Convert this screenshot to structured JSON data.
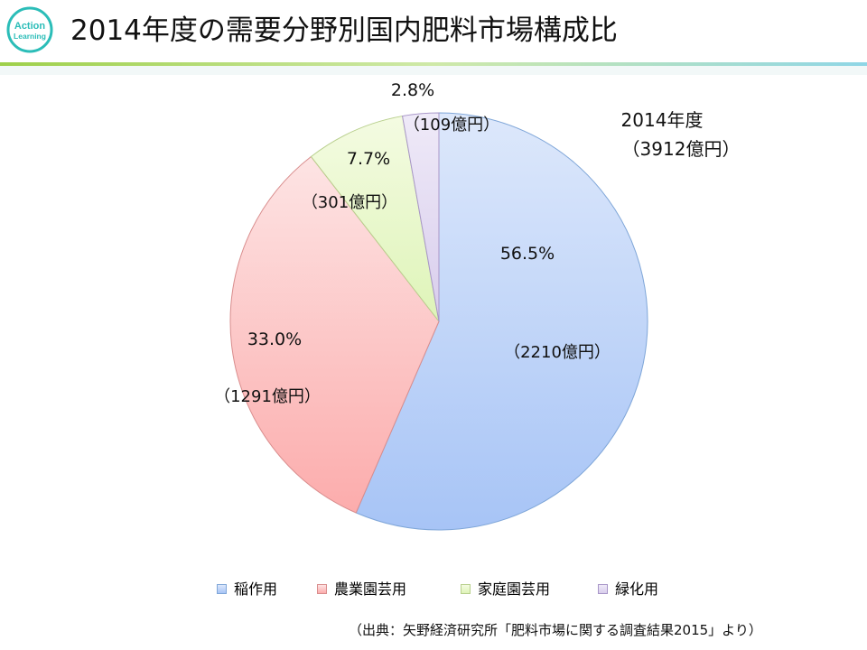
{
  "logo": {
    "line1": "Action",
    "line2": "Learning",
    "color": "#2bbdb8"
  },
  "header": {
    "title": "2014年度の需要分野別国内肥料市場構成比"
  },
  "chart_data": {
    "type": "pie",
    "total_label": {
      "year": "2014年度",
      "amount": "（3912億円）"
    },
    "categories": [
      "稲作用",
      "農業園芸用",
      "家庭園芸用",
      "緑化用"
    ],
    "values": [
      56.5,
      33.0,
      7.7,
      2.8
    ],
    "amounts": [
      "（2210億円）",
      "（1291億円）",
      "（301億円）",
      "（109億円）"
    ],
    "percent_labels": [
      "56.5%",
      "33.0%",
      "7.7%",
      "2.8%"
    ],
    "colors": [
      {
        "fill_top": "#dde8fb",
        "fill_bottom": "#a7c4f6",
        "stroke": "#7fa6d8"
      },
      {
        "fill_top": "#fde4e4",
        "fill_bottom": "#fcacac",
        "stroke": "#d98d8d"
      },
      {
        "fill_top": "#f4fbe2",
        "fill_bottom": "#def4b8",
        "stroke": "#b8cf8d"
      },
      {
        "fill_top": "#efeaf8",
        "fill_bottom": "#d8cdec",
        "stroke": "#a896c8"
      }
    ],
    "start": "12 o'clock",
    "direction": "clockwise",
    "legend_position": "bottom"
  },
  "footer": {
    "source": "（出典：矢野経済研究所「肥料市場に関する調査結果2015」より）"
  }
}
